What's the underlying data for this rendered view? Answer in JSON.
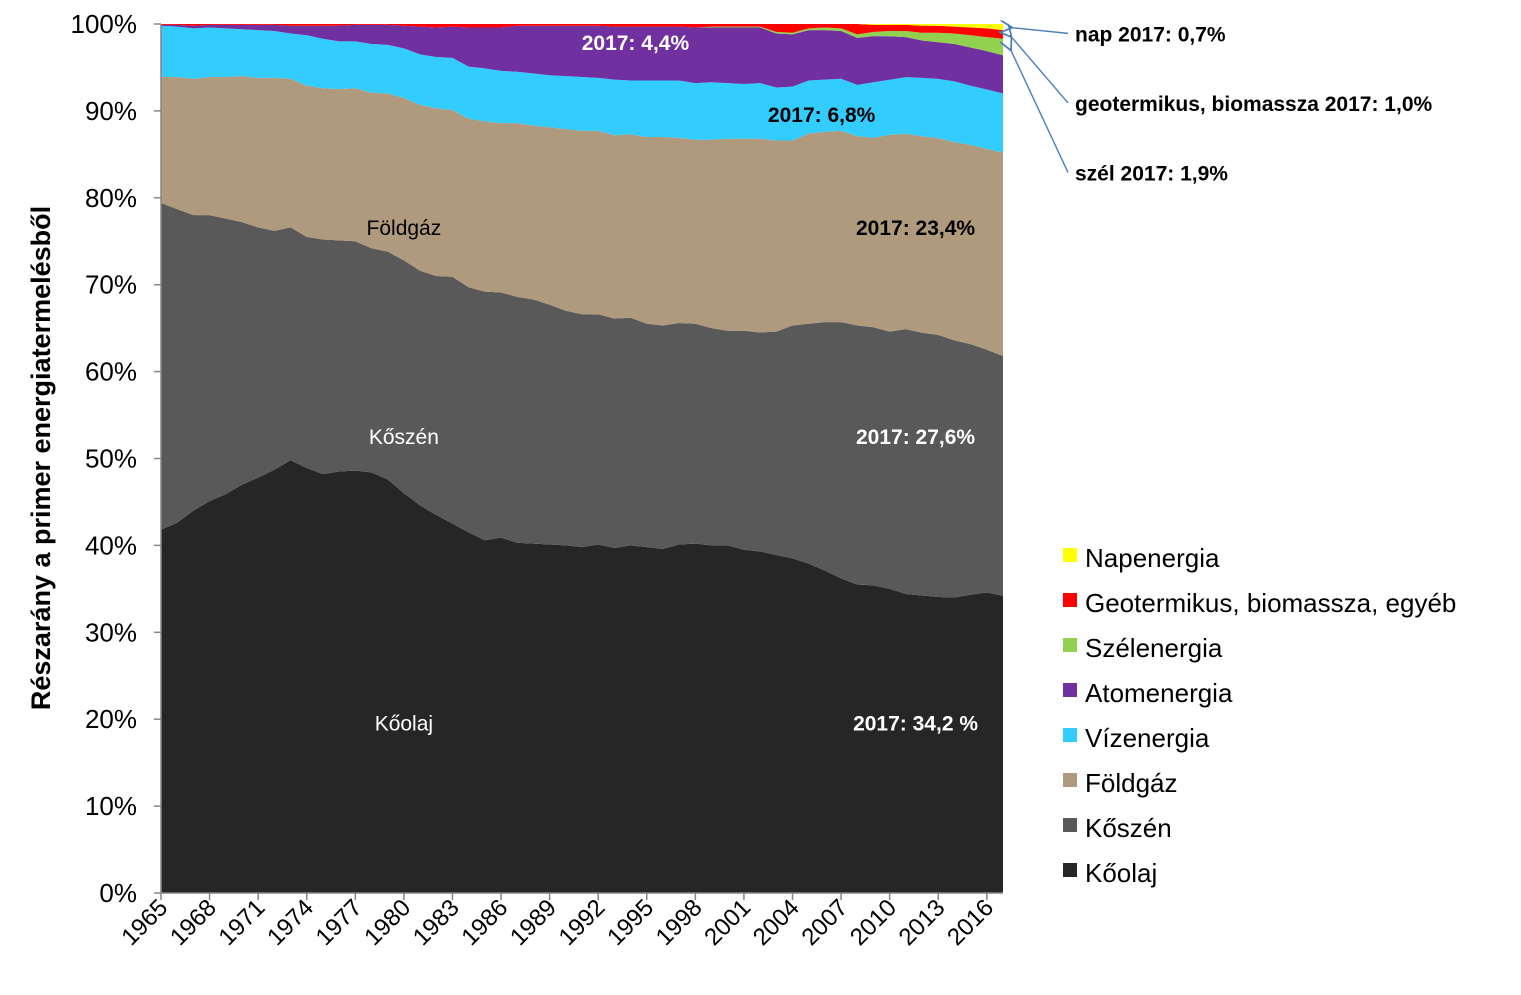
{
  "chart_data": {
    "type": "area",
    "stacked": true,
    "percent": true,
    "ylabel": "Részarány a primer energiatermelésből",
    "ylim": [
      0,
      100
    ],
    "yticks": [
      "0%",
      "10%",
      "20%",
      "30%",
      "40%",
      "50%",
      "60%",
      "70%",
      "80%",
      "90%",
      "100%"
    ],
    "xticks": [
      "1965",
      "1968",
      "1971",
      "1974",
      "1977",
      "1980",
      "1983",
      "1986",
      "1989",
      "1992",
      "1995",
      "1998",
      "2001",
      "2004",
      "2007",
      "2010",
      "2013",
      "2016"
    ],
    "x": [
      1965,
      1966,
      1967,
      1968,
      1969,
      1970,
      1971,
      1972,
      1973,
      1974,
      1975,
      1976,
      1977,
      1978,
      1979,
      1980,
      1981,
      1982,
      1983,
      1984,
      1985,
      1986,
      1987,
      1988,
      1989,
      1990,
      1991,
      1992,
      1993,
      1994,
      1995,
      1996,
      1997,
      1998,
      1999,
      2000,
      2001,
      2002,
      2003,
      2004,
      2005,
      2006,
      2007,
      2008,
      2009,
      2010,
      2011,
      2012,
      2013,
      2014,
      2015,
      2016,
      2017
    ],
    "series": [
      {
        "name": "Kőolaj",
        "color": "#262626",
        "values": [
          41.8,
          42.6,
          44.0,
          45.1,
          45.9,
          47.0,
          47.8,
          48.7,
          49.8,
          48.9,
          48.2,
          48.5,
          48.6,
          48.4,
          47.6,
          46.0,
          44.6,
          43.5,
          42.5,
          41.5,
          40.6,
          40.9,
          40.3,
          40.2,
          40.1,
          40.0,
          39.8,
          40.1,
          39.7,
          40.0,
          39.8,
          39.6,
          40.1,
          40.2,
          40.0,
          40.0,
          39.5,
          39.3,
          38.9,
          38.5,
          37.9,
          37.1,
          36.2,
          35.5,
          35.4,
          34.9,
          34.3,
          34.2,
          34.0,
          34.0,
          34.3,
          34.4,
          34.2
        ]
      },
      {
        "name": "Kőszén",
        "color": "#595959",
        "values": [
          37.6,
          36.1,
          34.0,
          32.9,
          31.7,
          30.2,
          28.8,
          27.5,
          26.8,
          26.6,
          27.0,
          26.6,
          26.4,
          25.8,
          26.2,
          26.8,
          27.0,
          27.5,
          28.4,
          28.2,
          28.6,
          28.2,
          28.3,
          28.1,
          27.6,
          27.0,
          26.8,
          26.5,
          26.4,
          26.2,
          25.7,
          25.7,
          25.5,
          25.3,
          25.0,
          24.7,
          25.2,
          25.2,
          25.7,
          26.8,
          27.6,
          28.6,
          29.5,
          29.8,
          29.7,
          29.5,
          30.4,
          30.2,
          30.1,
          29.6,
          28.8,
          27.8,
          27.6
        ]
      },
      {
        "name": "Földgáz",
        "color": "#af9a7e",
        "values": [
          14.5,
          15.2,
          15.7,
          15.9,
          16.3,
          16.8,
          17.2,
          17.6,
          17.1,
          17.4,
          17.4,
          17.4,
          17.6,
          17.9,
          18.2,
          18.7,
          19.1,
          19.3,
          19.2,
          19.4,
          19.6,
          19.5,
          20.0,
          20.0,
          20.4,
          20.9,
          21.1,
          21.1,
          21.1,
          21.1,
          21.5,
          21.7,
          21.3,
          21.2,
          21.7,
          22.1,
          22.1,
          22.3,
          22.0,
          21.3,
          21.9,
          21.9,
          22.0,
          21.8,
          21.8,
          22.6,
          22.4,
          22.6,
          22.6,
          22.8,
          22.9,
          23.0,
          23.4
        ]
      },
      {
        "name": "Vízenergia",
        "color": "#33ccff",
        "values": [
          5.9,
          5.8,
          5.8,
          5.7,
          5.6,
          5.4,
          5.5,
          5.4,
          5.2,
          5.8,
          5.7,
          5.5,
          5.4,
          5.6,
          5.6,
          5.7,
          5.8,
          5.9,
          6.0,
          6.0,
          6.1,
          6.0,
          5.9,
          6.0,
          6.0,
          6.1,
          6.2,
          6.1,
          6.4,
          6.2,
          6.5,
          6.5,
          6.6,
          6.5,
          6.6,
          6.4,
          6.3,
          6.4,
          6.1,
          6.2,
          6.1,
          6.0,
          6.0,
          5.9,
          6.4,
          6.3,
          6.5,
          6.7,
          6.8,
          7.0,
          6.8,
          6.8,
          6.8
        ]
      },
      {
        "name": "Atomenergia",
        "color": "#7030a0",
        "values": [
          0.1,
          0.2,
          0.3,
          0.3,
          0.4,
          0.5,
          0.6,
          0.7,
          0.9,
          1.1,
          1.5,
          1.8,
          1.9,
          2.2,
          2.3,
          2.6,
          3.2,
          3.4,
          3.6,
          4.5,
          4.7,
          5.0,
          5.3,
          5.5,
          5.7,
          5.8,
          5.9,
          6.0,
          6.1,
          6.2,
          6.2,
          6.2,
          6.2,
          6.4,
          6.3,
          6.4,
          6.5,
          6.4,
          6.2,
          6.0,
          5.8,
          5.7,
          5.5,
          5.4,
          5.3,
          5.0,
          4.6,
          4.3,
          4.2,
          4.3,
          4.4,
          4.4,
          4.4
        ]
      },
      {
        "name": "Szélenergia",
        "color": "#92d050",
        "values": [
          0,
          0,
          0,
          0,
          0,
          0,
          0,
          0,
          0,
          0,
          0,
          0,
          0,
          0,
          0,
          0,
          0,
          0,
          0,
          0,
          0,
          0,
          0,
          0,
          0,
          0,
          0,
          0,
          0,
          0,
          0,
          0,
          0,
          0,
          0.1,
          0.1,
          0.1,
          0.1,
          0.2,
          0.2,
          0.2,
          0.3,
          0.3,
          0.4,
          0.5,
          0.6,
          0.7,
          0.9,
          1.1,
          1.2,
          1.4,
          1.6,
          1.9
        ]
      },
      {
        "name": "Geotermikus, biomassza, egyéb",
        "color": "#ff0000",
        "values": [
          0.1,
          0.1,
          0.2,
          0.1,
          0.1,
          0.1,
          0.1,
          0.1,
          0.2,
          0.2,
          0.2,
          0.2,
          0.1,
          0.1,
          0.1,
          0.2,
          0.3,
          0.4,
          0.3,
          0.4,
          0.4,
          0.4,
          0.2,
          0.2,
          0.2,
          0.2,
          0.2,
          0.2,
          0.3,
          0.3,
          0.3,
          0.3,
          0.3,
          0.4,
          0.3,
          0.3,
          0.3,
          0.3,
          0.9,
          1.0,
          0.5,
          0.4,
          0.5,
          1.2,
          0.8,
          0.7,
          0.7,
          0.8,
          0.8,
          0.8,
          0.9,
          1.0,
          1.0
        ]
      },
      {
        "name": "Napenergia",
        "color": "#ffff00",
        "values": [
          0,
          0,
          0,
          0,
          0,
          0,
          0,
          0,
          0,
          0,
          0,
          0,
          0,
          0,
          0,
          0,
          0,
          0,
          0,
          0,
          0,
          0,
          0,
          0,
          0,
          0,
          0,
          0,
          0,
          0,
          0,
          0,
          0,
          0,
          0,
          0,
          0,
          0,
          0,
          0,
          0,
          0,
          0,
          0,
          0.1,
          0.1,
          0.1,
          0.2,
          0.2,
          0.3,
          0.4,
          0.5,
          0.7
        ]
      }
    ],
    "legend_position": "bottom-right",
    "area_labels": [
      {
        "text": "Kőolaj",
        "x": 1980,
        "y": 19.5,
        "color": "#ffffff",
        "bold": false
      },
      {
        "text": "Kőszén",
        "x": 1980,
        "y": 52.5,
        "color": "#ffffff",
        "bold": false
      },
      {
        "text": "Földgáz",
        "x": 1980,
        "y": 76.5,
        "color": "#000000",
        "bold": false
      },
      {
        "text": "2017: 34,2 %",
        "x": 2011.6,
        "y": 19.5,
        "color": "#ffffff",
        "bold": true
      },
      {
        "text": "2017: 27,6%",
        "x": 2011.6,
        "y": 52.5,
        "color": "#ffffff",
        "bold": true
      },
      {
        "text": "2017: 23,4%",
        "x": 2011.6,
        "y": 76.5,
        "color": "#000000",
        "bold": true
      },
      {
        "text": "2017: 6,8%",
        "x": 2005.8,
        "y": 89.5,
        "color": "#000000",
        "bold": true
      },
      {
        "text": "2017: 4,4%",
        "x": 1994.3,
        "y": 97.8,
        "color": "#ffffff",
        "bold": true
      }
    ],
    "side_annotations": [
      {
        "text": "nap 2017: 0,7%",
        "target_y": 99.6,
        "label_y": 98.0
      },
      {
        "text": "geotermikus, biomassza 2017: 1,0%",
        "target_y": 98.7,
        "label_y": 90.0
      },
      {
        "text": "szél 2017: 1,9%",
        "target_y": 97.2,
        "label_y": 82.0
      }
    ]
  }
}
